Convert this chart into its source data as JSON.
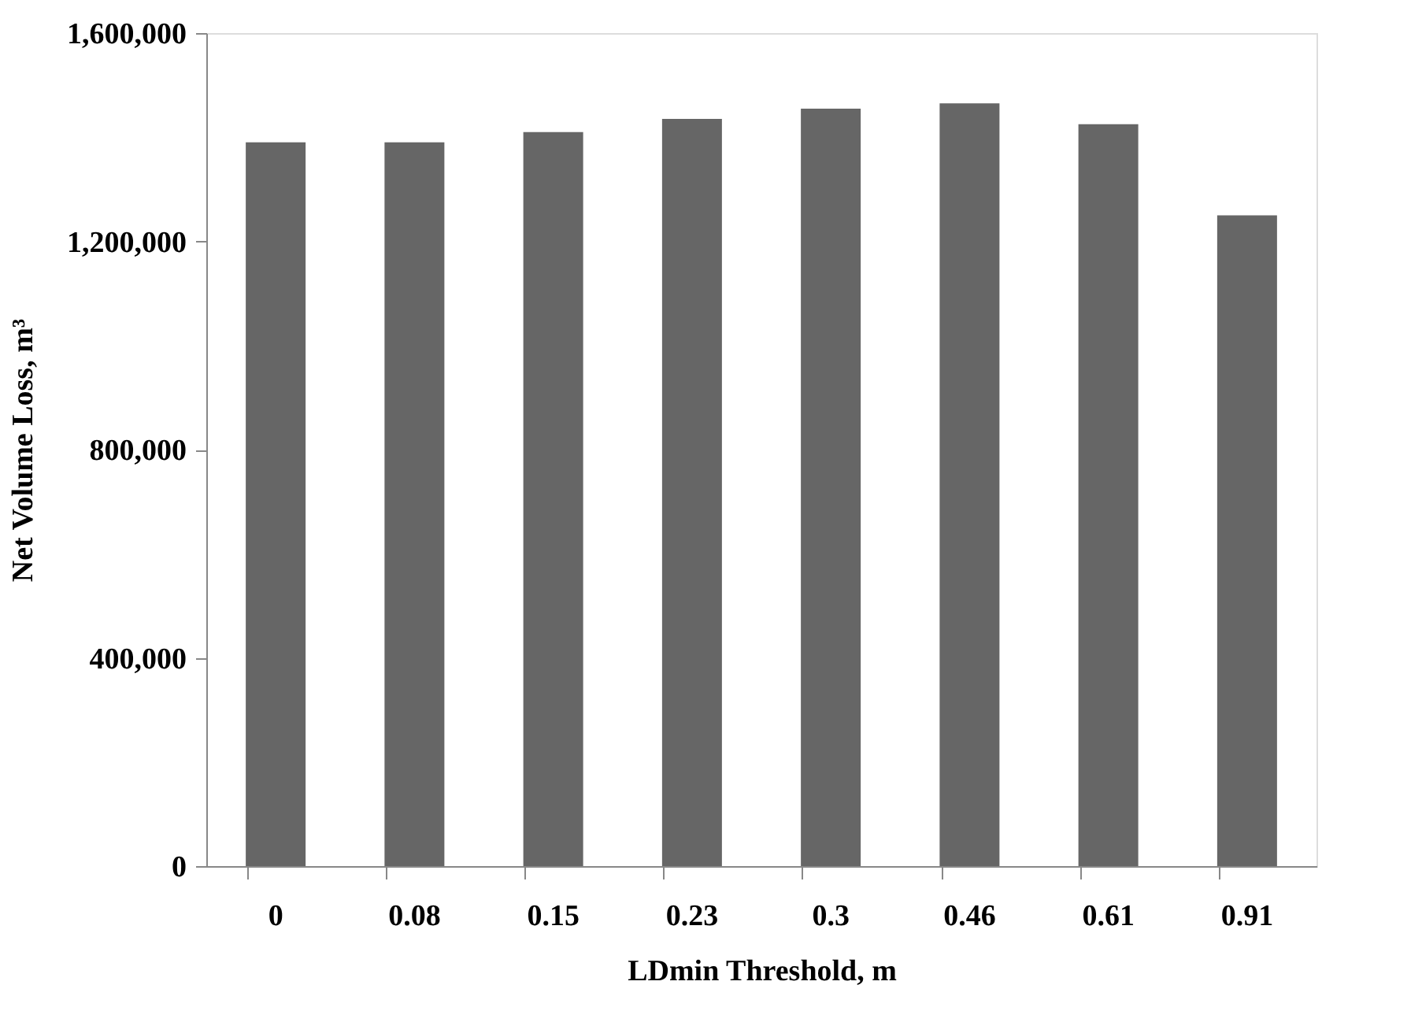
{
  "chart_data": {
    "type": "bar",
    "xlabel": "LDmin Threshold, m",
    "ylabel": "Net Volume Loss, m³",
    "categories": [
      "0",
      "0.08",
      "0.15",
      "0.23",
      "0.3",
      "0.46",
      "0.61",
      "0.91"
    ],
    "values": [
      1390000,
      1390000,
      1410000,
      1435000,
      1455000,
      1465000,
      1425000,
      1250000
    ],
    "color": "#666666",
    "ylim": [
      0,
      1600000
    ],
    "yticks": [
      0,
      {
        "value": 400000,
        "label": "400,000"
      },
      {
        "value": 800000,
        "label": "800,000"
      },
      {
        "value": 1200000,
        "label": "1,200,000"
      },
      {
        "value": 1600000,
        "label": "1,600,000"
      }
    ],
    "grid": false
  }
}
